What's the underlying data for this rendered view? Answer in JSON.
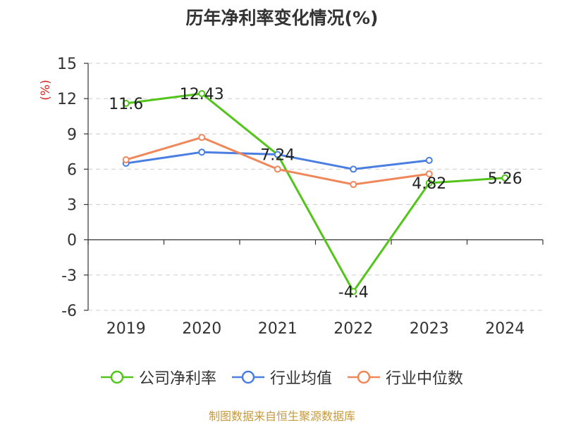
{
  "chart_data": {
    "type": "line",
    "title": "历年净利率变化情况(%)",
    "ylabel": "(%)",
    "xlabel": "",
    "categories": [
      "2019",
      "2020",
      "2021",
      "2022",
      "2023",
      "2024"
    ],
    "ylim": [
      -6,
      15
    ],
    "yticks": [
      -6,
      -3,
      0,
      3,
      6,
      9,
      12,
      15
    ],
    "grid": true,
    "legend_position": "bottom",
    "series": [
      {
        "name": "公司净利率",
        "color": "#52c41a",
        "values": [
          11.6,
          12.43,
          7.24,
          -4.4,
          4.82,
          5.26
        ],
        "labels": [
          "11.6",
          "12.43",
          "7.24",
          "-4.4",
          "4.82",
          "5.26"
        ]
      },
      {
        "name": "行业均值",
        "color": "#4a7ee0",
        "values": [
          6.5,
          7.45,
          7.25,
          6.0,
          6.75,
          null
        ]
      },
      {
        "name": "行业中位数",
        "color": "#f0875a",
        "values": [
          6.8,
          8.7,
          6.0,
          4.7,
          5.6,
          null
        ]
      }
    ]
  },
  "source_note": "制图数据来自恒生聚源数据库"
}
